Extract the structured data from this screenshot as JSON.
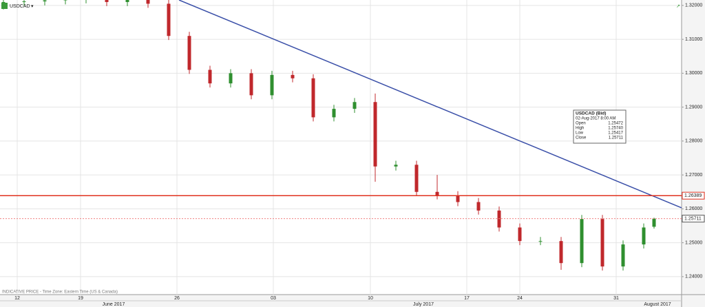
{
  "chart_data": {
    "type": "candlestick",
    "symbol": "USDCAD",
    "footer": "INDICATIVE PRICE - Time Zone: Eastern Time (US & Canada)",
    "x": [
      5,
      35,
      65,
      95,
      125,
      155,
      185,
      215,
      245,
      275,
      305,
      335,
      365,
      395,
      425,
      455,
      485,
      515,
      545,
      575,
      605,
      635,
      665,
      695,
      725,
      755,
      785,
      815,
      845,
      875,
      905,
      935,
      950
    ],
    "open": [
      1.32,
      1.321,
      1.3212,
      1.3215,
      1.3218,
      1.3219,
      1.321,
      1.3216,
      1.3205,
      1.311,
      1.301,
      1.297,
      1.3,
      1.2935,
      1.2995,
      1.2985,
      1.287,
      1.2895,
      1.2915,
      1.2725,
      1.273,
      1.265,
      1.264,
      1.262,
      1.2595,
      1.2545,
      1.2505,
      1.2505,
      1.244,
      1.257,
      1.243,
      1.2495,
      1.25472
    ],
    "high": [
      1.3222,
      1.3224,
      1.3227,
      1.323,
      1.3231,
      1.3231,
      1.3228,
      1.3228,
      1.3217,
      1.3122,
      1.3022,
      1.3012,
      1.3012,
      1.3007,
      1.3007,
      1.2997,
      1.2907,
      1.2927,
      1.294,
      1.2742,
      1.2742,
      1.27,
      1.2652,
      1.2632,
      1.2607,
      1.2557,
      1.2517,
      1.2517,
      1.2582,
      1.2582,
      1.2507,
      1.2557,
      1.2574
    ],
    "low": [
      1.3188,
      1.3198,
      1.32,
      1.3203,
      1.3206,
      1.3198,
      1.3198,
      1.3193,
      1.3098,
      1.2998,
      1.2958,
      1.2958,
      1.2923,
      1.2923,
      1.2973,
      1.2858,
      1.2858,
      1.2883,
      1.268,
      1.2713,
      1.2638,
      1.2628,
      1.2608,
      1.2583,
      1.2533,
      1.2493,
      1.2493,
      1.242,
      1.2428,
      1.2418,
      1.2418,
      1.2483,
      1.25417
    ],
    "close": [
      1.321,
      1.3212,
      1.3215,
      1.3218,
      1.3219,
      1.321,
      1.3216,
      1.3205,
      1.311,
      1.301,
      1.297,
      1.3,
      1.2935,
      1.2995,
      1.2985,
      1.287,
      1.2895,
      1.2915,
      1.2725,
      1.273,
      1.265,
      1.264,
      1.262,
      1.2595,
      1.2545,
      1.2505,
      1.2505,
      1.244,
      1.257,
      1.243,
      1.2495,
      1.2545,
      1.25711
    ],
    "up_color": "#2f8f2f",
    "down_color": "#c0282c",
    "xlim": [
      0,
      990
    ],
    "ylim": [
      1.2347,
      1.3216
    ],
    "xticks": [
      {
        "value": 25,
        "label": "12"
      },
      {
        "value": 117,
        "label": "19"
      },
      {
        "value": 257,
        "label": "26"
      },
      {
        "value": 397,
        "label": "03"
      },
      {
        "value": 538,
        "label": "10"
      },
      {
        "value": 678,
        "label": "17"
      },
      {
        "value": 755,
        "label": "24"
      },
      {
        "value": 895,
        "label": "31"
      }
    ],
    "month_ticks": [
      {
        "value": 165,
        "label": "June 2017"
      },
      {
        "value": 615,
        "label": "July 2017"
      },
      {
        "value": 955,
        "label": "August 2017"
      }
    ],
    "yticks": [
      {
        "value": 1.32,
        "label": "1.32000"
      },
      {
        "value": 1.31,
        "label": "1.31000"
      },
      {
        "value": 1.3,
        "label": "1.30000"
      },
      {
        "value": 1.29,
        "label": "1.29000"
      },
      {
        "value": 1.28,
        "label": "1.28000"
      },
      {
        "value": 1.27,
        "label": "1.27000"
      },
      {
        "value": 1.26,
        "label": "1.26000"
      },
      {
        "value": 1.25,
        "label": "1.25000"
      },
      {
        "value": 1.24,
        "label": "1.24000"
      }
    ],
    "grid": true,
    "trendline": {
      "x": [
        260,
        990
      ],
      "y": [
        1.3216,
        1.2603
      ],
      "color": "#3a4fa8"
    },
    "level_line": {
      "value": 1.26389,
      "label": "1.26389",
      "color": "#e0301e"
    },
    "last_price": {
      "value": 1.25711,
      "label": "1.25711",
      "color": "#f08080"
    },
    "tooltip": {
      "title": "USDCAD (Bid)",
      "date": "02-Aug-2017 8:00 AM",
      "rows": [
        [
          "Open",
          "1.25472"
        ],
        [
          "High",
          "1.25740"
        ],
        [
          "Low",
          "1.25417"
        ],
        [
          "Close",
          "1.25711"
        ]
      ]
    }
  }
}
